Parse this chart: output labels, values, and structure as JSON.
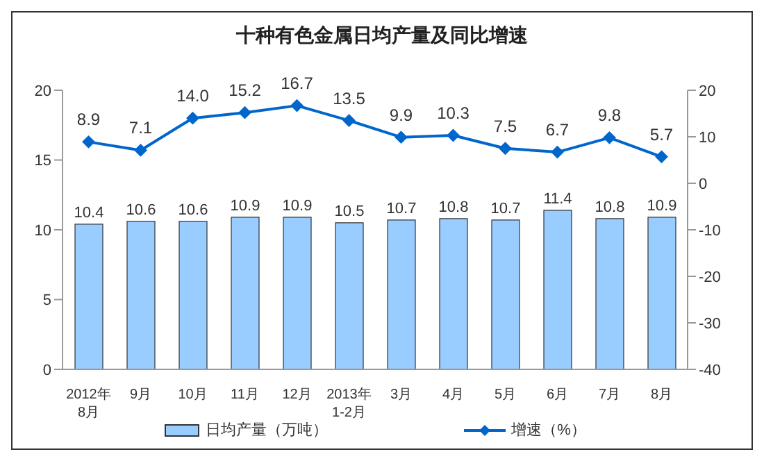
{
  "chart_data": {
    "type": "bar",
    "title": "十种有色金属日均产量及同比增速",
    "categories": [
      "2012年\n8月",
      "9月",
      "10月",
      "11月",
      "12月",
      "2013年\n1-2月",
      "3月",
      "4月",
      "5月",
      "6月",
      "7月",
      "8月"
    ],
    "series": [
      {
        "name": "日均产量（万吨）",
        "color": "#99ccff",
        "values": [
          10.4,
          10.6,
          10.6,
          10.9,
          10.9,
          10.5,
          10.7,
          10.8,
          10.7,
          11.4,
          10.8,
          10.9
        ],
        "value_labels": [
          "10.4",
          "10.6",
          "10.6",
          "10.9",
          "10.9",
          "10.5",
          "10.7",
          "10.8",
          "10.7",
          "11.4",
          "10.8",
          "10.9"
        ]
      },
      {
        "name": "增速（%）",
        "type": "line",
        "axis": "y2",
        "color": "#0066cc",
        "marker": "diamond",
        "values": [
          8.9,
          7.1,
          14.0,
          15.2,
          16.7,
          13.5,
          9.9,
          10.3,
          7.5,
          6.7,
          9.8,
          5.7
        ],
        "value_labels": [
          "8.9",
          "7.1",
          "14.0",
          "15.2",
          "16.7",
          "13.5",
          "9.9",
          "10.3",
          "7.5",
          "6.7",
          "9.8",
          "5.7"
        ]
      }
    ],
    "ylim": [
      0,
      20
    ],
    "yticks": [
      0,
      5,
      10,
      15,
      20
    ],
    "y2lim": [
      -40,
      20
    ],
    "y2ticks": [
      -40,
      -30,
      -20,
      -10,
      0,
      10,
      20
    ],
    "grid": false,
    "legend": "bottom"
  }
}
